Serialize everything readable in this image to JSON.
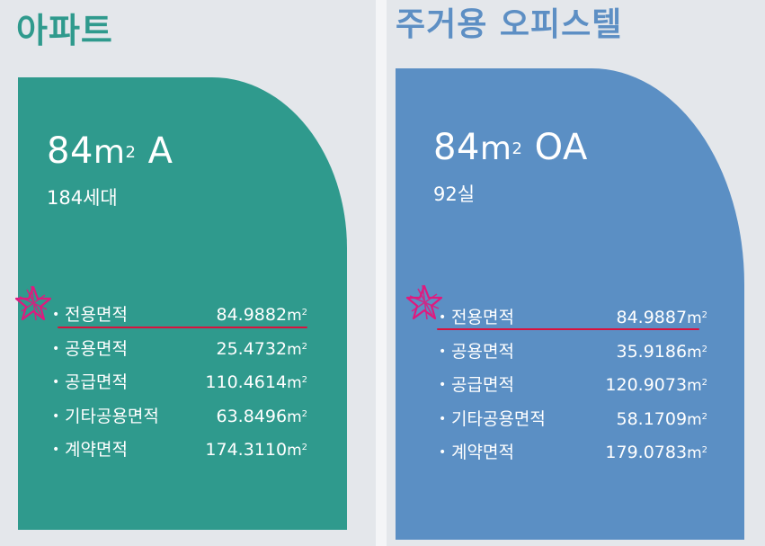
{
  "colors": {
    "apartment": "#2f9a8d",
    "officetel": "#5b8fc4",
    "highlight_line": "#d8123e",
    "star_mark": "#e0197e"
  },
  "icons": [
    "bullet-dot",
    "star-scribble-icon"
  ],
  "apartment": {
    "title": "아파트",
    "type_number": "84",
    "type_unit": "m",
    "type_unit_sup": "2",
    "type_suffix": "A",
    "count": "184세대",
    "specs": [
      {
        "label": "전용면적",
        "value": "84.9882"
      },
      {
        "label": "공용면적",
        "value": "25.4732"
      },
      {
        "label": "공급면적",
        "value": "110.4614"
      },
      {
        "label": "기타공용면적",
        "value": "63.8496"
      },
      {
        "label": "계약면적",
        "value": "174.3110"
      }
    ]
  },
  "officetel": {
    "title": "주거용 오피스텔",
    "type_number": "84",
    "type_unit": "m",
    "type_unit_sup": "2",
    "type_suffix": "OA",
    "count": "92실",
    "specs": [
      {
        "label": "전용면적",
        "value": "84.9887"
      },
      {
        "label": "공용면적",
        "value": "35.9186"
      },
      {
        "label": "공급면적",
        "value": "120.9073"
      },
      {
        "label": "기타공용면적",
        "value": "58.1709"
      },
      {
        "label": "계약면적",
        "value": "179.0783"
      }
    ]
  },
  "common": {
    "bullet": "•",
    "area_unit": "m",
    "area_sup": "2"
  }
}
